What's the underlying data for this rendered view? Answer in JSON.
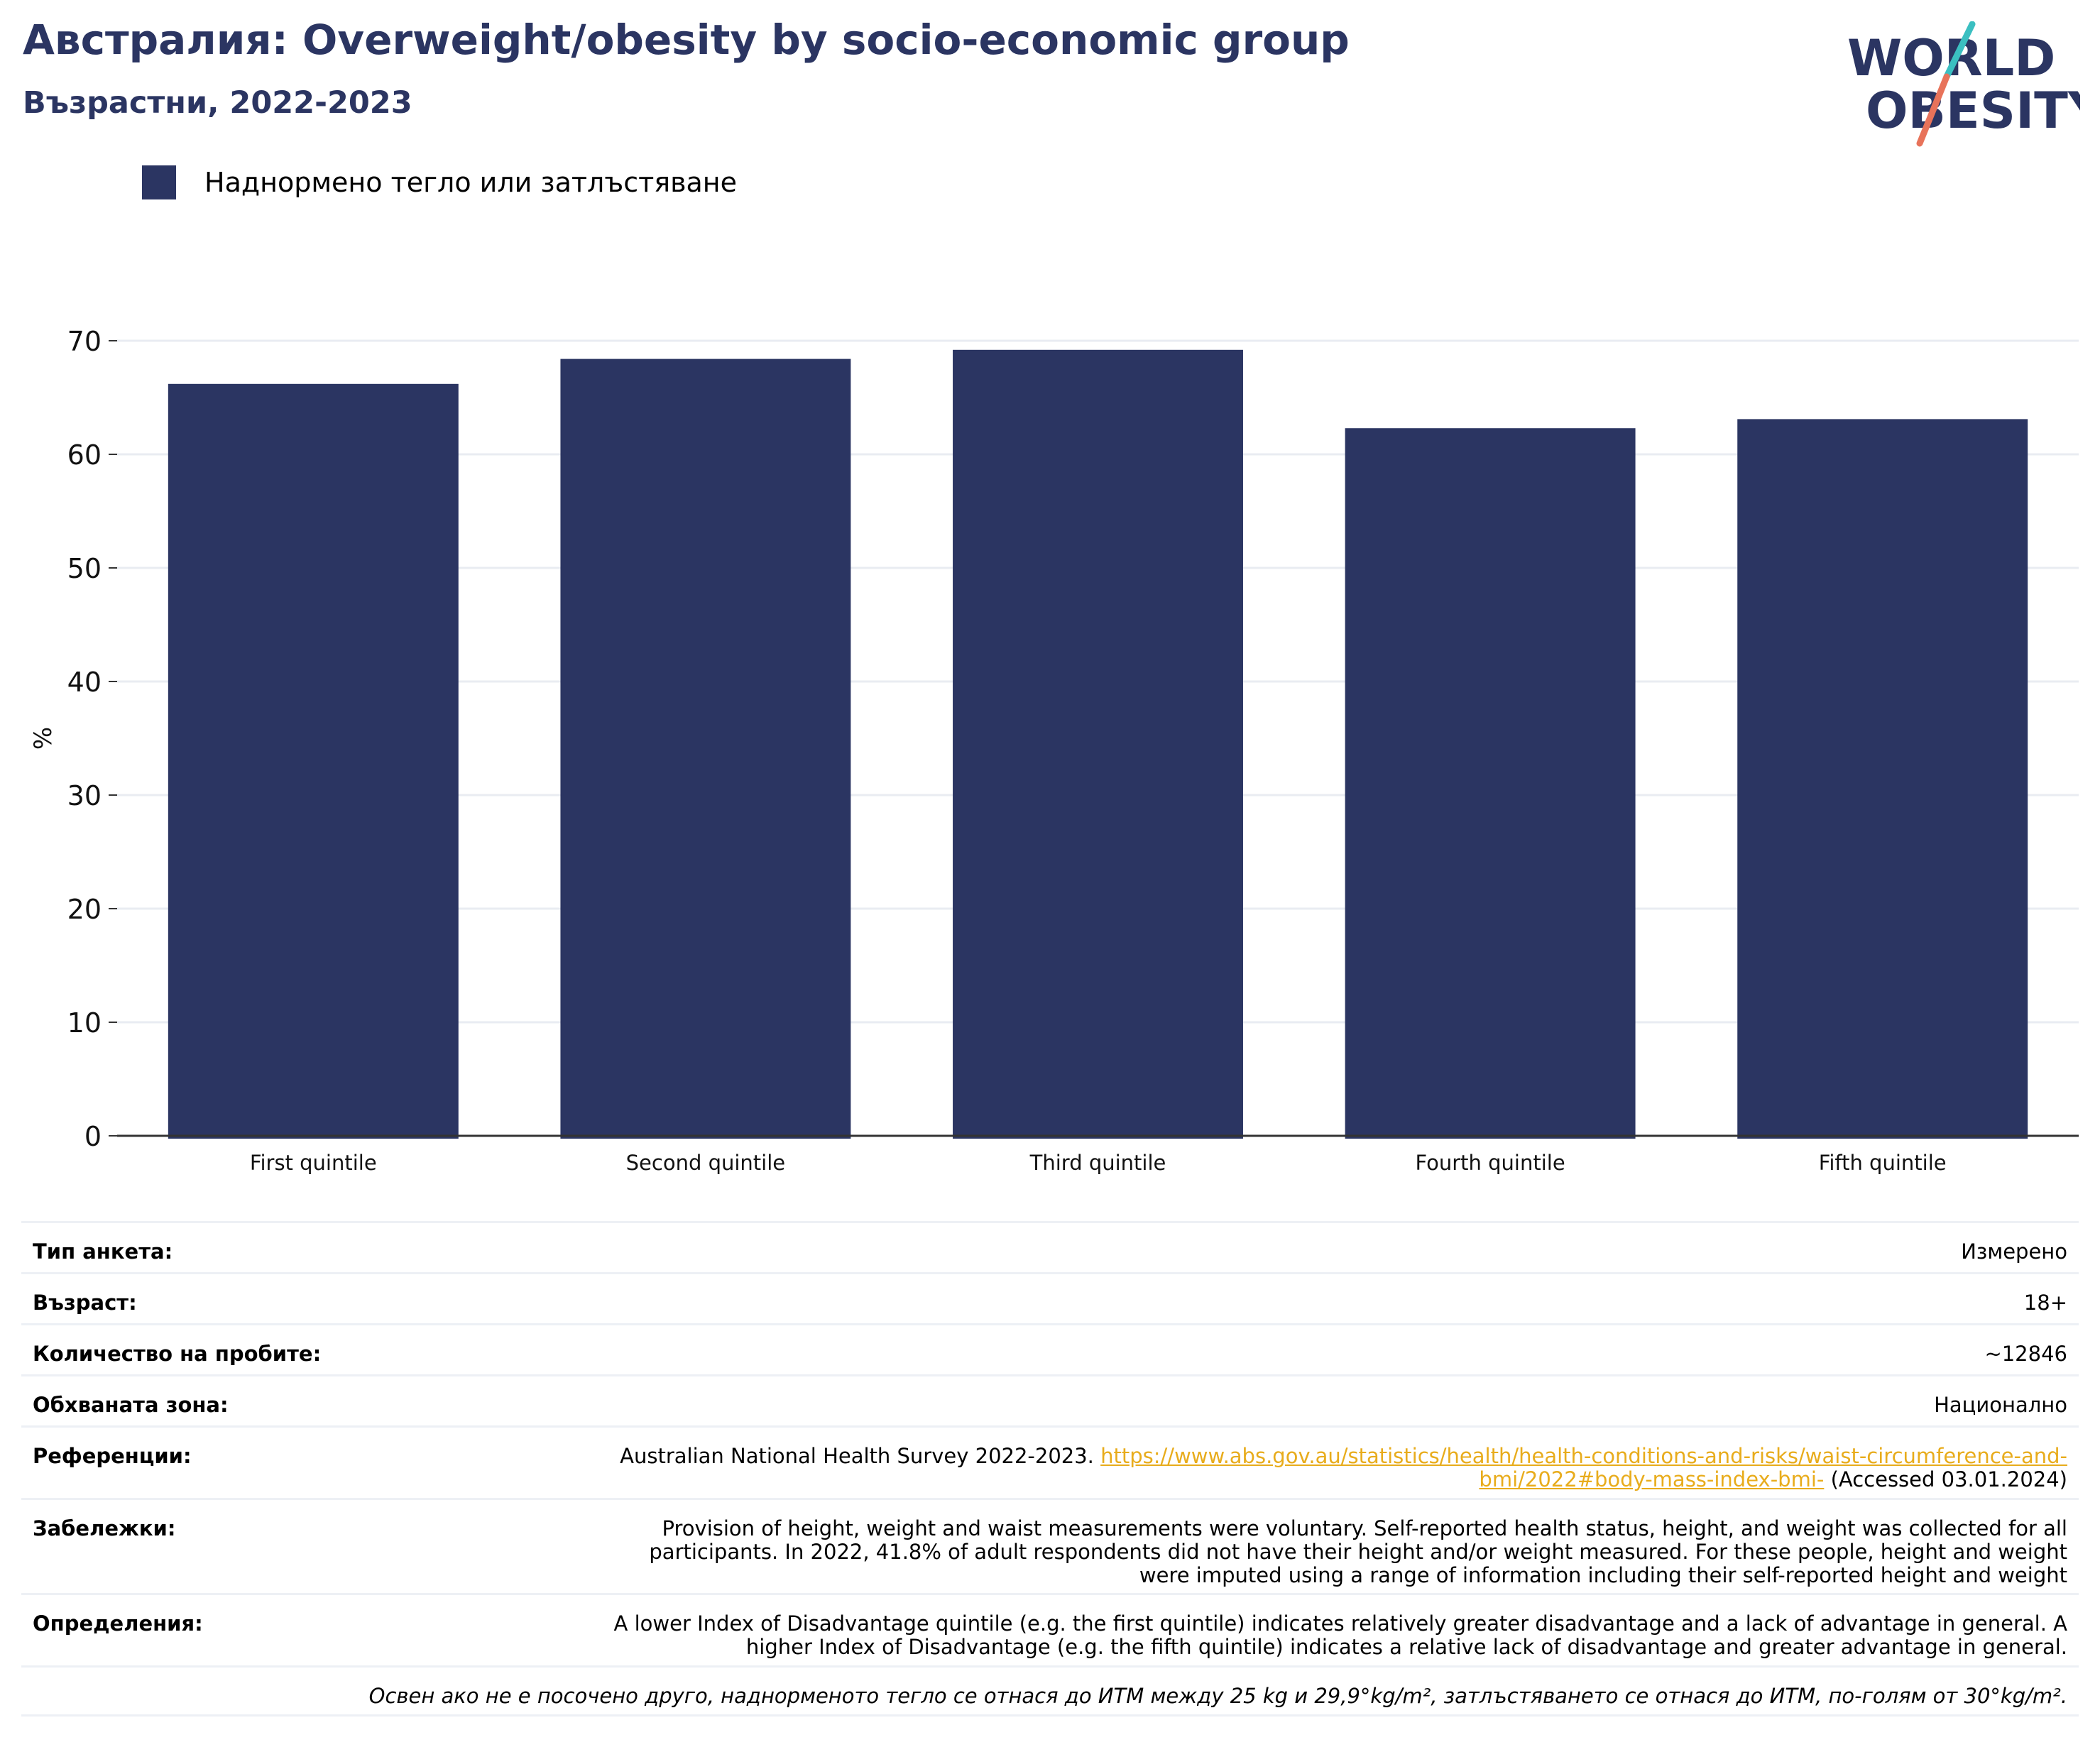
{
  "header": {
    "title": "Австралия: Overweight/obesity by socio-economic group",
    "subtitle": "Възрастни, 2022-2023"
  },
  "logo": {
    "line1": "WORLD",
    "line2": "OBESITY",
    "colors": {
      "text": "#2b3562",
      "slash_teal": "#3bbfc1",
      "slash_coral": "#e8735a"
    }
  },
  "legend": {
    "label": "Наднормено тегло или затлъстяване"
  },
  "chart_data": {
    "type": "bar",
    "title": "",
    "xlabel": "",
    "ylabel": "%",
    "categories": [
      "First quintile",
      "Second quintile",
      "Third quintile",
      "Fourth quintile",
      "Fifth quintile"
    ],
    "series": [
      {
        "name": "Наднормено тегло или затлъстяване",
        "values": [
          66.2,
          68.4,
          69.2,
          62.3,
          63.1
        ],
        "color": "#2b3562"
      }
    ],
    "ylim": [
      0,
      70
    ],
    "yticks": [
      0,
      10,
      20,
      30,
      40,
      50,
      60,
      70
    ],
    "grid": true,
    "legend_position": "top-left"
  },
  "meta": {
    "survey_type": {
      "label": "Тип анкета:",
      "value": "Измерено"
    },
    "age": {
      "label": "Възраст:",
      "value": "18+"
    },
    "sample_size": {
      "label": "Количество на пробите:",
      "value": "~12846"
    },
    "coverage": {
      "label": "Обхваната зона:",
      "value": "Национално"
    },
    "references": {
      "label": "Референции:",
      "text_before": "Australian National Health Survey 2022-2023.",
      "link_line1": "https://www.abs.gov.au/statistics/health/health-conditions-and-risks/waist-circumference-and-",
      "link_line2": "bmi/2022#body-mass-index-bmi-",
      "text_after": "(Accessed 03.01.2024)"
    },
    "notes": {
      "label": "Забележки:",
      "line1": "Provision of height, weight and waist measurements were voluntary. Self-reported health status, height, and weight was collected for all",
      "line2": "participants. In 2022, 41.8% of adult respondents did not have their height and/or weight measured. For these people, height and weight",
      "line3": "were imputed using a range of information including their self-reported height and weight"
    },
    "definitions": {
      "label": "Определения:",
      "line1": "A lower Index of Disadvantage quintile (e.g. the first quintile) indicates relatively greater disadvantage and a lack of advantage in general. A",
      "line2": "higher Index of Disadvantage (e.g. the fifth quintile) indicates a relative lack of disadvantage and greater advantage in general."
    },
    "footnote": "Освен ако не е посочено друго, наднорменото тегло се отнася до ИТМ между 25 kg и 29,9°kg/m², затлъстяването се отнася до ИТМ, по-голям от 30°kg/m²."
  }
}
